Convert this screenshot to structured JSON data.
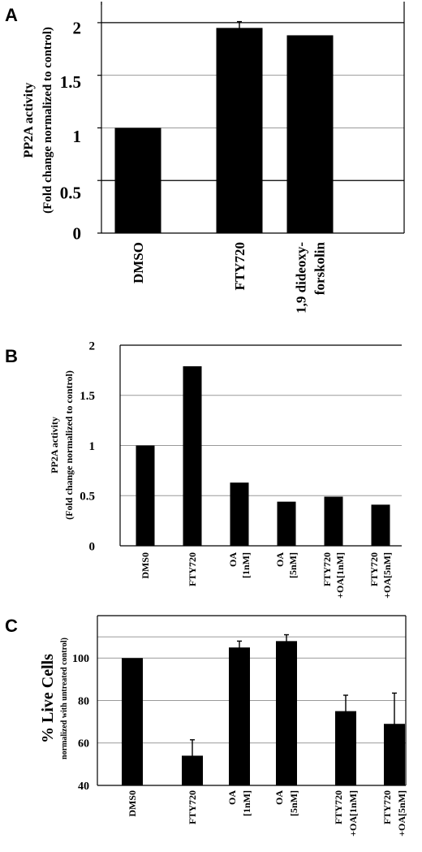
{
  "chart_data": [
    {
      "panel": "A",
      "type": "bar",
      "ylabel": "PP2A activity",
      "ylabel_sub": "(Fold change normalized to control)",
      "ylim": [
        0,
        2.2
      ],
      "yticks": [
        0,
        0.5,
        1,
        1.5,
        2
      ],
      "ytick_labels": [
        "0",
        "0.5",
        "1",
        "1.5",
        "2"
      ],
      "categories": [
        [
          "DMSO"
        ],
        [
          "FTY720"
        ],
        [
          "1,9 dideoxy-",
          "forskolin"
        ]
      ],
      "values": [
        1.0,
        1.95,
        1.88
      ],
      "errors": [
        0,
        0.06,
        0
      ],
      "grid": true
    },
    {
      "panel": "B",
      "type": "bar",
      "ylabel": "PP2A activity",
      "ylabel_sub": "(Fold change normalized to control)",
      "ylim": [
        0,
        2
      ],
      "yticks": [
        0,
        0.5,
        1,
        1.5,
        2
      ],
      "ytick_labels": [
        "0",
        "0.5",
        "1",
        "1.5",
        "2"
      ],
      "categories": [
        [
          "DMS0"
        ],
        [
          "FTY720"
        ],
        [
          "OA",
          "[1nM]"
        ],
        [
          "OA",
          "[5nM]"
        ],
        [
          "FTY720",
          "+OA[1nM]"
        ],
        [
          "FTY720",
          "+OA[5nM]"
        ]
      ],
      "values": [
        1.0,
        1.79,
        0.63,
        0.44,
        0.49,
        0.41
      ],
      "errors": [
        0,
        0,
        0,
        0,
        0,
        0
      ],
      "grid": true
    },
    {
      "panel": "C",
      "type": "bar",
      "ylabel": "% Live Cells",
      "ylabel_sub": "normalized with untreated control)",
      "ylim": [
        40,
        120
      ],
      "yticks": [
        40,
        60,
        80,
        100
      ],
      "ytick_labels": [
        "40",
        "60",
        "80",
        "100"
      ],
      "categories": [
        [
          "DMS0"
        ],
        [
          "FTY720"
        ],
        [
          "OA",
          "[1nM]"
        ],
        [
          "OA",
          "[5nM]"
        ],
        [
          "FTY720",
          "+OA[1nM]"
        ],
        [
          "FTY720",
          "+OA[5nM]"
        ]
      ],
      "values": [
        100,
        54,
        105,
        108,
        75,
        69
      ],
      "errors": [
        0,
        7.5,
        3,
        3,
        7.5,
        14.5
      ],
      "grid": true
    }
  ]
}
